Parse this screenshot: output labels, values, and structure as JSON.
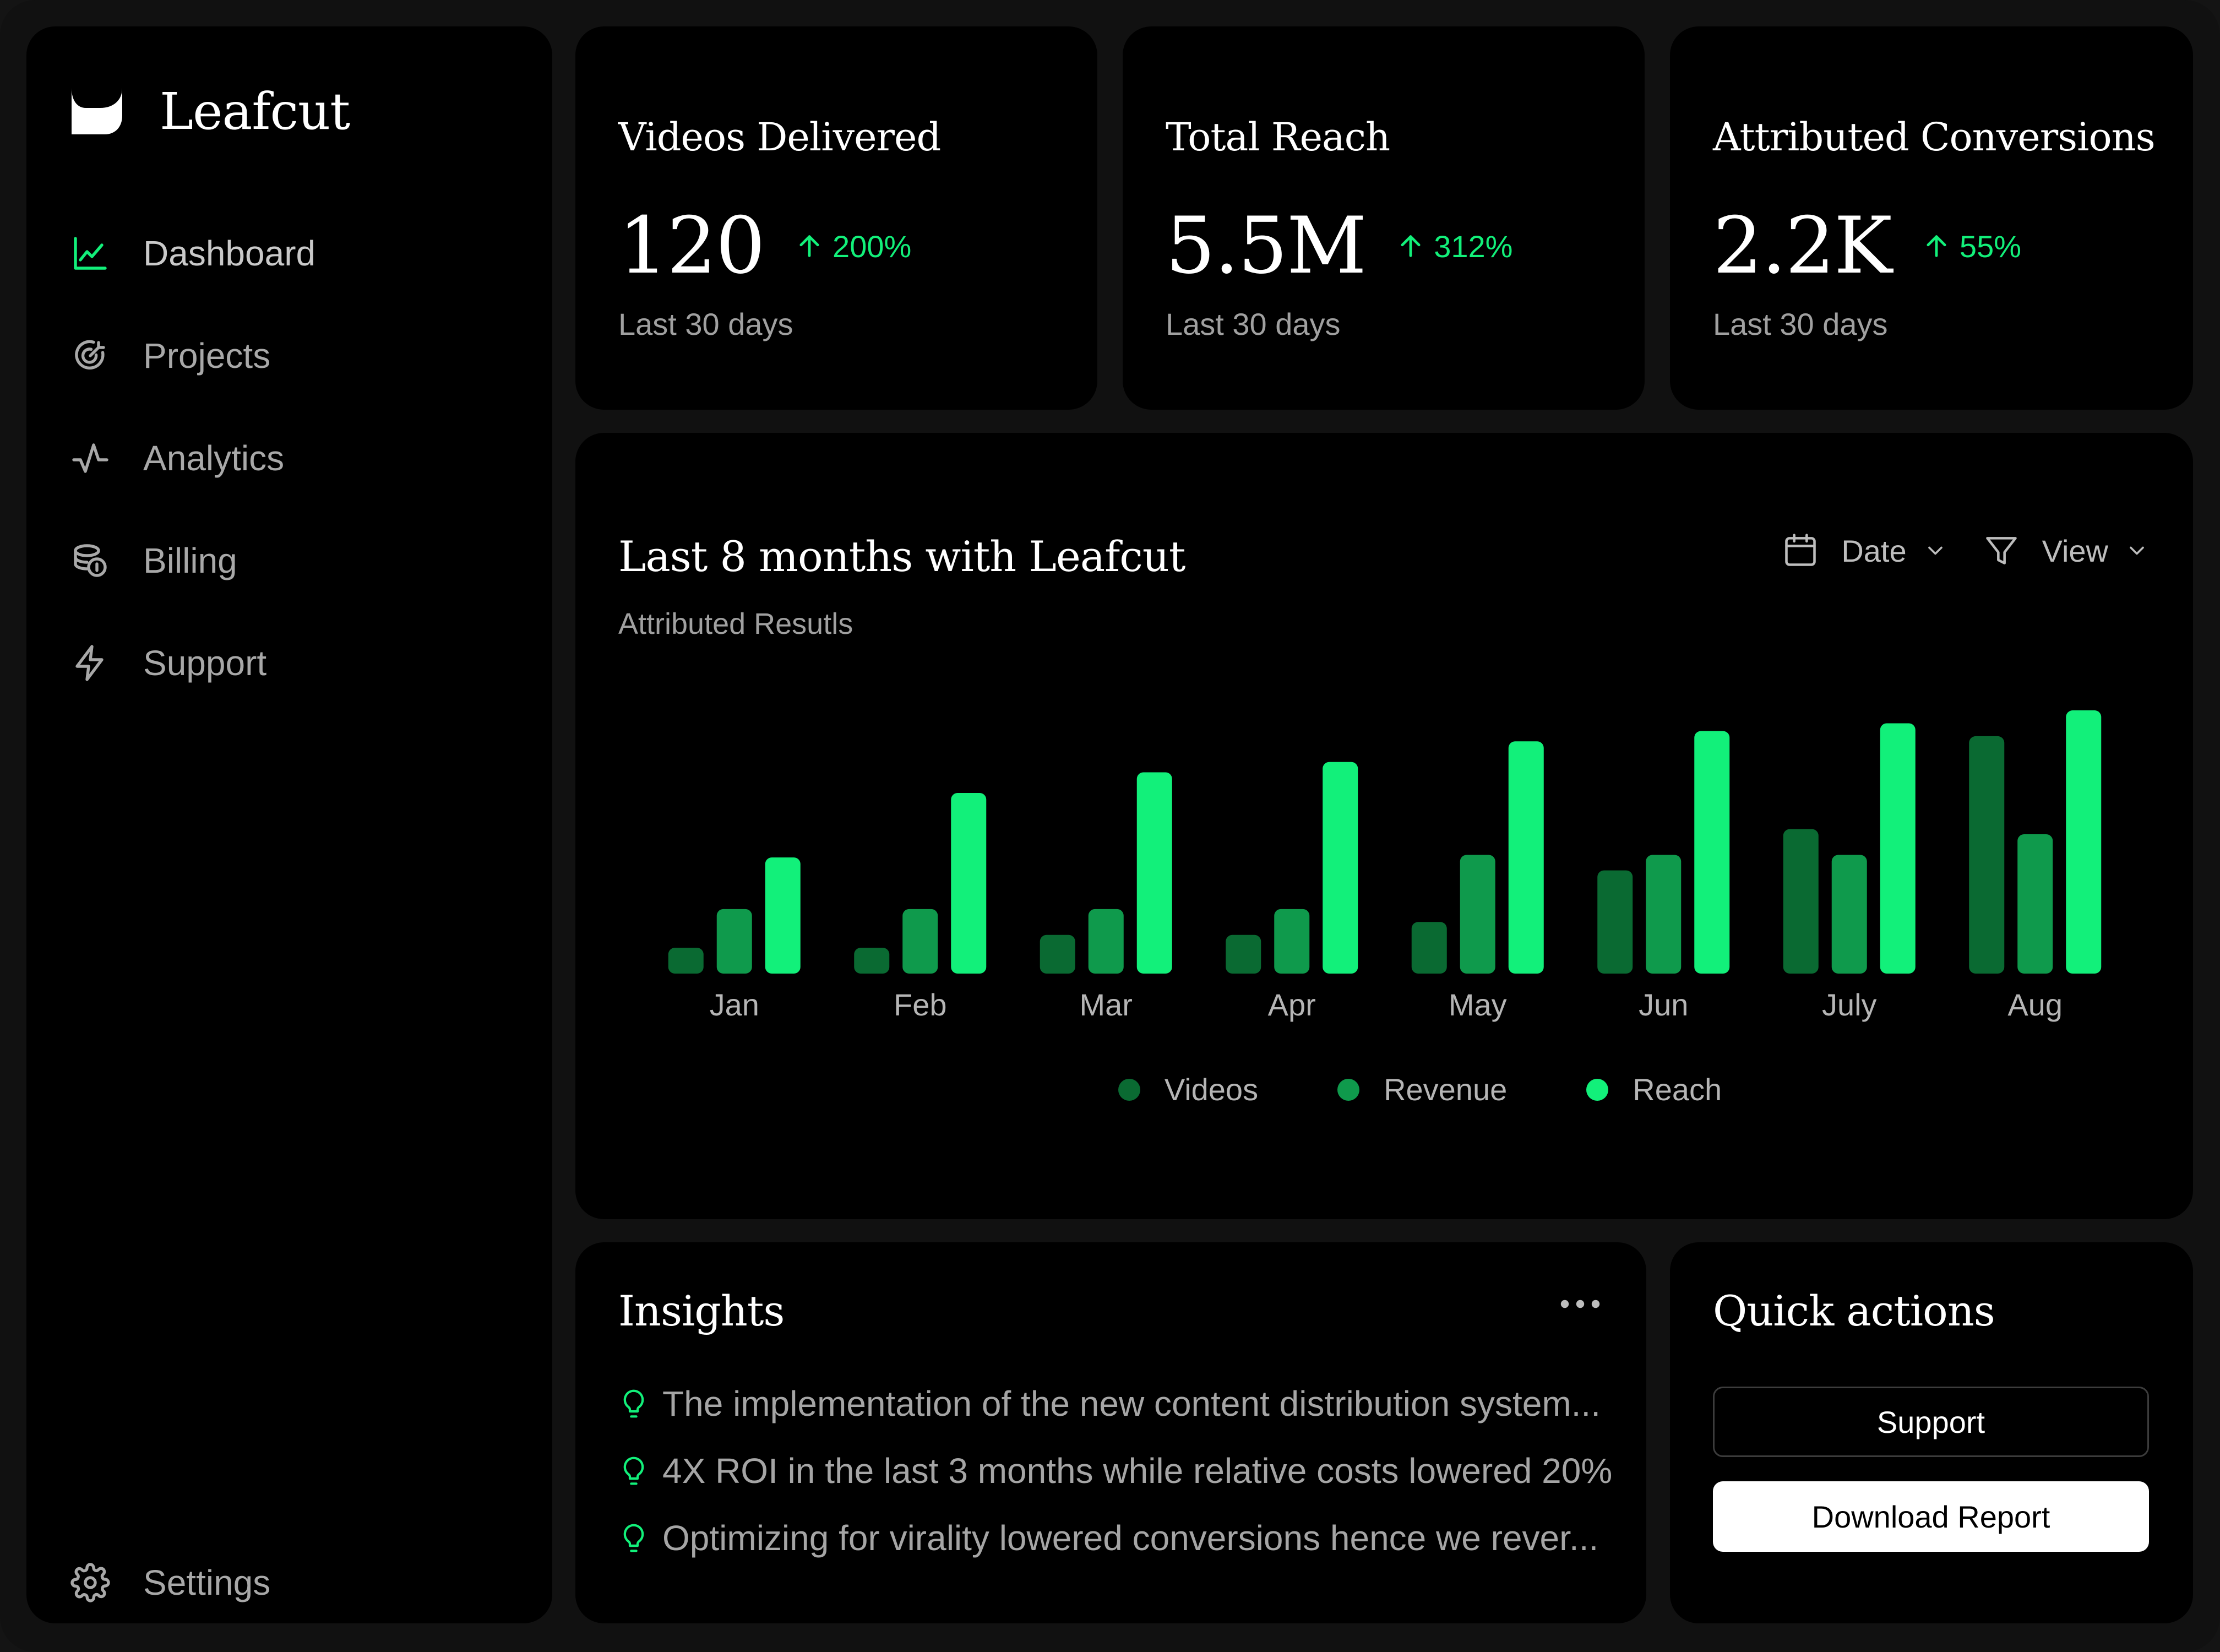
{
  "brand": {
    "name": "Leafcut"
  },
  "sidebar": {
    "items": [
      {
        "label": "Dashboard",
        "icon": "line-chart-icon",
        "active": true
      },
      {
        "label": "Projects",
        "icon": "target-icon"
      },
      {
        "label": "Analytics",
        "icon": "pulse-icon"
      },
      {
        "label": "Billing",
        "icon": "coins-icon"
      },
      {
        "label": "Support",
        "icon": "lightning-icon"
      }
    ],
    "settings": {
      "label": "Settings",
      "icon": "gear-icon"
    }
  },
  "stats": [
    {
      "title": "Videos Delivered",
      "value": "120",
      "delta": "200%",
      "period": "Last 30 days"
    },
    {
      "title": "Total Reach",
      "value": "5.5M",
      "delta": "312%",
      "period": "Last 30 days"
    },
    {
      "title": "Attributed Conversions",
      "value": "2.2K",
      "delta": "55%",
      "period": "Last 30 days"
    }
  ],
  "chart": {
    "title": "Last 8 months with Leafcut",
    "subtitle": "Attributed Resutls",
    "controls": {
      "date_label": "Date",
      "view_label": "View"
    }
  },
  "chart_data": {
    "type": "bar",
    "categories": [
      "Jan",
      "Feb",
      "Mar",
      "Apr",
      "May",
      "Jun",
      "July",
      "Aug"
    ],
    "series": [
      {
        "name": "Videos",
        "color": "#0a6a32",
        "values": [
          10,
          10,
          15,
          15,
          20,
          40,
          56,
          92
        ]
      },
      {
        "name": "Revenue",
        "color": "#0f9a4c",
        "values": [
          25,
          25,
          25,
          25,
          46,
          46,
          46,
          54
        ]
      },
      {
        "name": "Reach",
        "color": "#12f07a",
        "values": [
          45,
          70,
          78,
          82,
          90,
          94,
          97,
          102
        ]
      }
    ],
    "ylim": [
      0,
      105
    ],
    "grid": false,
    "legend": "bottom-center"
  },
  "insights": {
    "title": "Insights",
    "items": [
      "The implementation of the new content distribution system...",
      "4X ROI in the last 3 months while relative costs lowered 20%",
      "Optimizing for virality lowered conversions hence we rever..."
    ]
  },
  "quick_actions": {
    "title": "Quick actions",
    "support_label": "Support",
    "download_label": "Download Report"
  }
}
